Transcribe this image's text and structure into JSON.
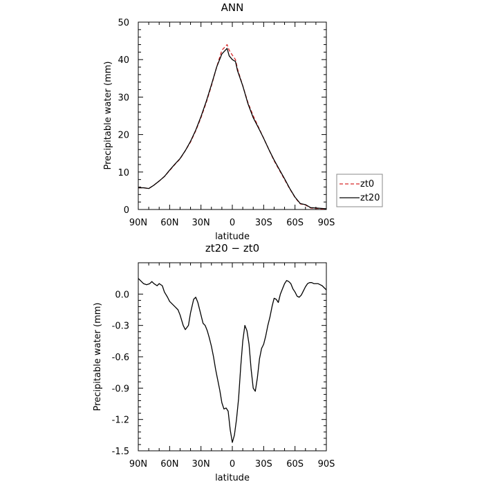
{
  "chart_data": [
    {
      "type": "line",
      "title": "ANN",
      "xlabel": "latitude",
      "ylabel": "Precipitable water  (mm)",
      "xlim": [
        90,
        -90
      ],
      "ylim": [
        0,
        50
      ],
      "xticks": [
        90,
        60,
        30,
        0,
        -30,
        -60,
        -90
      ],
      "xtick_labels": [
        "90N",
        "60N",
        "30N",
        "0",
        "30S",
        "60S",
        "90S"
      ],
      "yticks": [
        0,
        10,
        20,
        30,
        40,
        50
      ],
      "ytick_labels": [
        "0",
        "10",
        "20",
        "30",
        "40",
        "50"
      ],
      "grid": false,
      "legend_position": "outside-right",
      "series": [
        {
          "name": "zt0",
          "color": "#d62728",
          "style": "dashed",
          "x": [
            90,
            85,
            80,
            75,
            70,
            65,
            60,
            55,
            50,
            45,
            40,
            35,
            30,
            25,
            20,
            15,
            10,
            5,
            3,
            0,
            -3,
            -5,
            -10,
            -15,
            -20,
            -25,
            -30,
            -35,
            -40,
            -45,
            -50,
            -55,
            -60,
            -65,
            -70,
            -75,
            -80,
            -85,
            -90
          ],
          "y": [
            5.8,
            5.8,
            5.6,
            6.5,
            7.6,
            8.8,
            10.4,
            12.0,
            13.5,
            15.7,
            18.0,
            21.0,
            24.5,
            28.5,
            33.0,
            38.0,
            42.5,
            44.0,
            42.5,
            41.2,
            40.0,
            37.5,
            33.0,
            28.5,
            25.0,
            22.0,
            19.0,
            16.0,
            13.0,
            10.5,
            8.0,
            5.5,
            3.2,
            1.5,
            1.2,
            0.4,
            0.3,
            0.2,
            0.1
          ]
        },
        {
          "name": "zt20",
          "color": "#000000",
          "style": "solid",
          "x": [
            90,
            85,
            80,
            75,
            70,
            65,
            60,
            55,
            50,
            45,
            40,
            35,
            30,
            25,
            20,
            15,
            10,
            5,
            3,
            0,
            -3,
            -5,
            -10,
            -15,
            -20,
            -25,
            -30,
            -35,
            -40,
            -45,
            -50,
            -55,
            -60,
            -65,
            -70,
            -75,
            -80,
            -85,
            -90
          ],
          "y": [
            5.8,
            5.8,
            5.6,
            6.5,
            7.6,
            8.8,
            10.5,
            12.1,
            13.6,
            15.7,
            18.2,
            21.2,
            24.8,
            28.8,
            33.3,
            38.0,
            41.5,
            43.0,
            41.0,
            40.0,
            39.5,
            37.0,
            33.0,
            28.2,
            24.5,
            21.8,
            19.0,
            16.0,
            13.2,
            10.7,
            8.2,
            5.6,
            3.3,
            1.6,
            1.3,
            0.5,
            0.4,
            0.3,
            0.2
          ]
        }
      ]
    },
    {
      "type": "line",
      "title": "zt20 − zt0",
      "xlabel": "latitude",
      "ylabel": "Precipitable water  (mm)",
      "xlim": [
        90,
        -90
      ],
      "ylim": [
        -1.5,
        0.3
      ],
      "xticks": [
        90,
        60,
        30,
        0,
        -30,
        -60,
        -90
      ],
      "xtick_labels": [
        "90N",
        "60N",
        "30N",
        "0",
        "30S",
        "60S",
        "90S"
      ],
      "yticks": [
        0.0,
        -0.3,
        -0.6,
        -0.9,
        -1.2,
        -1.5
      ],
      "ytick_labels": [
        "0.0",
        "-0.3",
        "-0.6",
        "-0.9",
        "-1.2",
        "-1.5"
      ],
      "grid": false,
      "series": [
        {
          "color": "#000000",
          "style": "solid",
          "x": [
            90,
            87,
            85,
            82,
            79,
            77,
            75,
            72,
            70,
            67,
            65,
            62,
            60,
            57,
            55,
            52,
            50,
            47,
            45,
            42,
            40,
            37,
            35,
            33,
            30,
            28,
            26,
            24,
            22,
            20,
            18,
            16,
            14,
            12,
            10,
            8,
            6,
            4,
            2,
            0,
            -2,
            -4,
            -6,
            -8,
            -10,
            -12,
            -14,
            -16,
            -18,
            -20,
            -22,
            -24,
            -26,
            -28,
            -30,
            -32,
            -34,
            -36,
            -38,
            -40,
            -42,
            -44,
            -46,
            -48,
            -50,
            -52,
            -54,
            -56,
            -58,
            -60,
            -62,
            -64,
            -66,
            -68,
            -70,
            -72,
            -74,
            -76,
            -78,
            -80,
            -82,
            -84,
            -86,
            -88,
            -90
          ],
          "y": [
            0.15,
            0.12,
            0.1,
            0.09,
            0.1,
            0.12,
            0.1,
            0.08,
            0.1,
            0.08,
            0.02,
            -0.03,
            -0.07,
            -0.1,
            -0.12,
            -0.15,
            -0.2,
            -0.3,
            -0.34,
            -0.3,
            -0.18,
            -0.05,
            -0.03,
            -0.08,
            -0.2,
            -0.28,
            -0.3,
            -0.35,
            -0.42,
            -0.5,
            -0.6,
            -0.72,
            -0.82,
            -0.92,
            -1.04,
            -1.1,
            -1.09,
            -1.12,
            -1.3,
            -1.42,
            -1.35,
            -1.2,
            -1.0,
            -0.7,
            -0.45,
            -0.3,
            -0.35,
            -0.48,
            -0.72,
            -0.9,
            -0.93,
            -0.8,
            -0.62,
            -0.52,
            -0.48,
            -0.4,
            -0.3,
            -0.22,
            -0.12,
            -0.04,
            -0.05,
            -0.08,
            0.0,
            0.05,
            0.1,
            0.13,
            0.12,
            0.1,
            0.05,
            0.02,
            -0.02,
            -0.03,
            -0.01,
            0.03,
            0.07,
            0.1,
            0.11,
            0.11,
            0.1,
            0.1,
            0.1,
            0.09,
            0.08,
            0.06,
            0.04
          ]
        }
      ]
    }
  ]
}
